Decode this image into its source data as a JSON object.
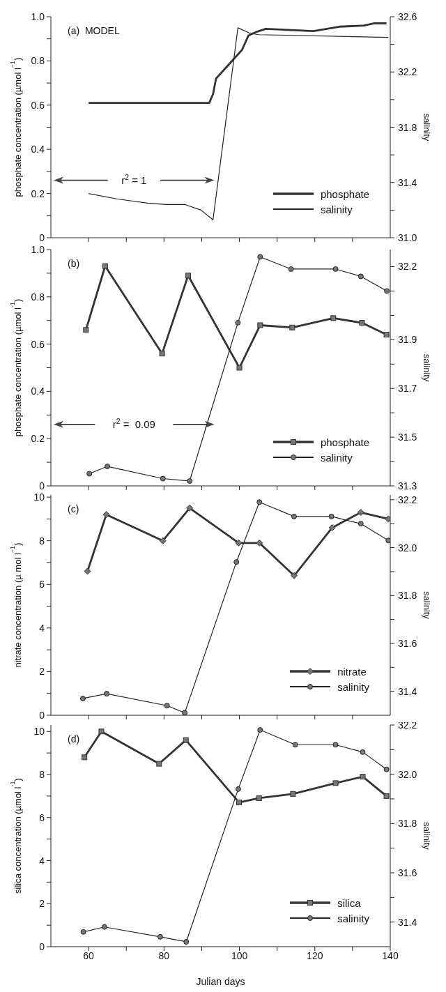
{
  "chart_data": [
    {
      "type": "line",
      "ylabel": "phosphate concentration (µmol l$^{−1}$)",
      "y2label": "salinity",
      "annotations": [
        "(a)  MODEL",
        "r$^{2}$ = 1"
      ],
      "legend": "bottom right",
      "tick_labels": "y",
      "xlim": [
        50,
        140
      ],
      "xticks": [
        60,
        70,
        80,
        90,
        100,
        110,
        120,
        130
      ],
      "ylim": [
        0,
        1.0
      ],
      "yticks": [
        0,
        {
          "value": 0.1,
          "label": null
        },
        0.2,
        {
          "value": 0.3,
          "label": null
        },
        0.4,
        {
          "value": 0.5,
          "label": null
        },
        0.6,
        {
          "value": 0.7,
          "label": null
        },
        0.8,
        {
          "value": 0.9,
          "label": null
        },
        {
          "value": 1,
          "label": "1.0"
        }
      ],
      "y2lim": [
        31.0,
        32.6
      ],
      "y2ticks": [
        {
          "value": 31,
          "label": "31.0"
        },
        {
          "value": 31.2,
          "label": null
        },
        31.4,
        {
          "value": 31.6,
          "label": null
        },
        31.8,
        {
          "value": 32,
          "label": null
        },
        32.2,
        {
          "value": 32.4,
          "label": null
        },
        32.6
      ],
      "series": [
        {
          "name": "phosphate",
          "color": "#333333",
          "x": [
            60,
            92,
            93,
            93.8,
            100.7,
            102.4,
            104.3,
            107,
            119.6,
            126.5,
            133,
            135.6,
            139
          ],
          "values": [
            0.61,
            0.61,
            0.65,
            0.72,
            0.85,
            0.915,
            0.93,
            0.945,
            0.935,
            0.955,
            0.96,
            0.97,
            0.97
          ]
        },
        {
          "name": "salinity",
          "color": "#222222",
          "axis": "y2",
          "x": [
            60,
            67.7,
            75.7,
            80.7,
            85.6,
            89.8,
            93,
            99.6,
            102.8,
            105.1,
            139.5
          ],
          "values": [
            31.32,
            31.28,
            31.25,
            31.24,
            31.24,
            31.2,
            31.13,
            32.52,
            32.48,
            32.47,
            32.45
          ]
        }
      ]
    },
    {
      "type": "line",
      "ylabel": "phosphate concentration (µmol l$^{-1}$)",
      "y2label": "salinity",
      "annotations": [
        "(b)",
        "r$^{2}$ =  0.09"
      ],
      "legend": "bottom right",
      "tick_labels": "y",
      "xlim": [
        50,
        140
      ],
      "xticks": [
        60,
        70,
        80,
        90,
        100,
        110,
        120,
        130
      ],
      "ylim": [
        0,
        1.0
      ],
      "yticks": [
        0,
        {
          "value": 0.1,
          "label": null
        },
        0.2,
        {
          "value": 0.3,
          "label": null
        },
        0.4,
        {
          "value": 0.5,
          "label": null
        },
        0.6,
        {
          "value": 0.7,
          "label": null
        },
        0.8,
        {
          "value": 0.9,
          "label": null
        },
        {
          "value": 1,
          "label": "1.0"
        }
      ],
      "y2lim": [
        31.3,
        32.27
      ],
      "y2ticks": [
        31.3,
        {
          "value": 31.4,
          "label": null
        },
        31.5,
        {
          "value": 31.6,
          "label": null
        },
        31.7,
        {
          "value": 31.8,
          "label": null
        },
        31.9,
        {
          "value": 32,
          "label": null
        },
        {
          "value": 32.1,
          "label": null
        },
        32.2
      ],
      "series": [
        {
          "name": "phosphate",
          "color": "#333333",
          "marker": "square",
          "x": [
            59.3,
            64.4,
            79.5,
            86.4,
            100,
            105.5,
            114,
            124.9,
            132.5,
            139
          ],
          "values": [
            0.66,
            0.93,
            0.56,
            0.89,
            0.5,
            0.68,
            0.67,
            0.71,
            0.69,
            0.64
          ]
        },
        {
          "name": "salinity",
          "color": "#222222",
          "axis": "y2",
          "marker": "circle",
          "x": [
            60.2,
            65,
            79.7,
            86.8,
            99.6,
            105.5,
            113.7,
            125.5,
            132.2,
            139.1
          ],
          "values": [
            31.35,
            31.38,
            31.33,
            31.32,
            31.97,
            32.24,
            32.19,
            32.19,
            32.16,
            32.1
          ]
        }
      ]
    },
    {
      "type": "line",
      "ylabel": "nitrate concentration (µ mol l$^{−1}$)",
      "y2label": "salinity",
      "annotations": [
        "(c)"
      ],
      "legend": "bottom right",
      "tick_labels": "y",
      "xlim": [
        50,
        140
      ],
      "xticks": [
        60,
        70,
        80,
        90,
        100,
        110,
        120,
        130
      ],
      "ylim": [
        0,
        10.1
      ],
      "yticks": [
        0,
        {
          "value": 1,
          "label": null
        },
        2,
        {
          "value": 3,
          "label": null
        },
        4,
        {
          "value": 5,
          "label": null
        },
        6,
        {
          "value": 7,
          "label": null
        },
        8,
        {
          "value": 9,
          "label": null
        },
        10
      ],
      "y2lim": [
        31.3,
        32.22
      ],
      "y2ticks": [
        31.4,
        {
          "value": 31.5,
          "label": null
        },
        31.6,
        {
          "value": 31.7,
          "label": null
        },
        31.8,
        {
          "value": 31.9,
          "label": null
        },
        {
          "value": 32,
          "label": "32.0"
        },
        {
          "value": 32.1,
          "label": null
        },
        32.2
      ],
      "series": [
        {
          "name": "nitrate",
          "color": "#333333",
          "marker": "diamond",
          "x": [
            59.7,
            64.7,
            79.7,
            86.8,
            99.8,
            105.3,
            114.5,
            124.6,
            132.2,
            139.5
          ],
          "values": [
            6.6,
            9.2,
            8.0,
            9.5,
            7.9,
            7.9,
            6.4,
            8.6,
            9.3,
            9.0
          ]
        },
        {
          "name": "salinity",
          "color": "#222222",
          "axis": "y2",
          "marker": "circle",
          "x": [
            58.5,
            64.8,
            80.8,
            85.5,
            99.2,
            105.3,
            114.5,
            124.4,
            132.2,
            139.5
          ],
          "values": [
            31.37,
            31.39,
            31.34,
            31.31,
            31.94,
            32.19,
            32.13,
            32.13,
            32.1,
            32.03
          ]
        }
      ]
    },
    {
      "type": "line",
      "ylabel": "silica concentration (µmol l$^{-1}$)",
      "y2label": "salinity",
      "xlabel": "Julian days",
      "annotations": [
        "(d)"
      ],
      "legend": "bottom right",
      "xlim": [
        50,
        140
      ],
      "xticks": [
        60,
        {
          "value": 70,
          "label": null
        },
        80,
        {
          "value": 90,
          "label": null
        },
        100,
        {
          "value": 110,
          "label": null
        },
        120,
        {
          "value": 130,
          "label": null
        },
        140
      ],
      "ylim": [
        0,
        10.3
      ],
      "yticks": [
        0,
        {
          "value": 1,
          "label": null
        },
        2,
        {
          "value": 3,
          "label": null
        },
        4,
        {
          "value": 5,
          "label": null
        },
        6,
        {
          "value": 7,
          "label": null
        },
        8,
        {
          "value": 9,
          "label": null
        },
        10
      ],
      "y2lim": [
        31.3,
        32.2
      ],
      "y2ticks": [
        31.4,
        {
          "value": 31.5,
          "label": null
        },
        31.6,
        {
          "value": 31.7,
          "label": null
        },
        31.8,
        {
          "value": 31.9,
          "label": null
        },
        {
          "value": 32,
          "label": "32.0"
        },
        {
          "value": 32.1,
          "label": null
        },
        32.2
      ],
      "series": [
        {
          "name": "silica",
          "color": "#333333",
          "marker": "square",
          "x": [
            58.9,
            63.4,
            78.7,
            85.8,
            99.9,
            105.2,
            114.2,
            125.5,
            132.7,
            139
          ],
          "values": [
            8.8,
            10.0,
            8.5,
            9.6,
            6.7,
            6.9,
            7.1,
            7.6,
            7.9,
            7.0
          ]
        },
        {
          "name": "salinity",
          "color": "#222222",
          "axis": "y2",
          "marker": "circle",
          "x": [
            58.6,
            64.2,
            79,
            85.9,
            99.7,
            105.5,
            114.8,
            125.5,
            132.7,
            139
          ],
          "values": [
            31.36,
            31.38,
            31.34,
            31.32,
            31.94,
            32.18,
            32.12,
            32.12,
            32.09,
            32.02
          ]
        }
      ]
    }
  ]
}
